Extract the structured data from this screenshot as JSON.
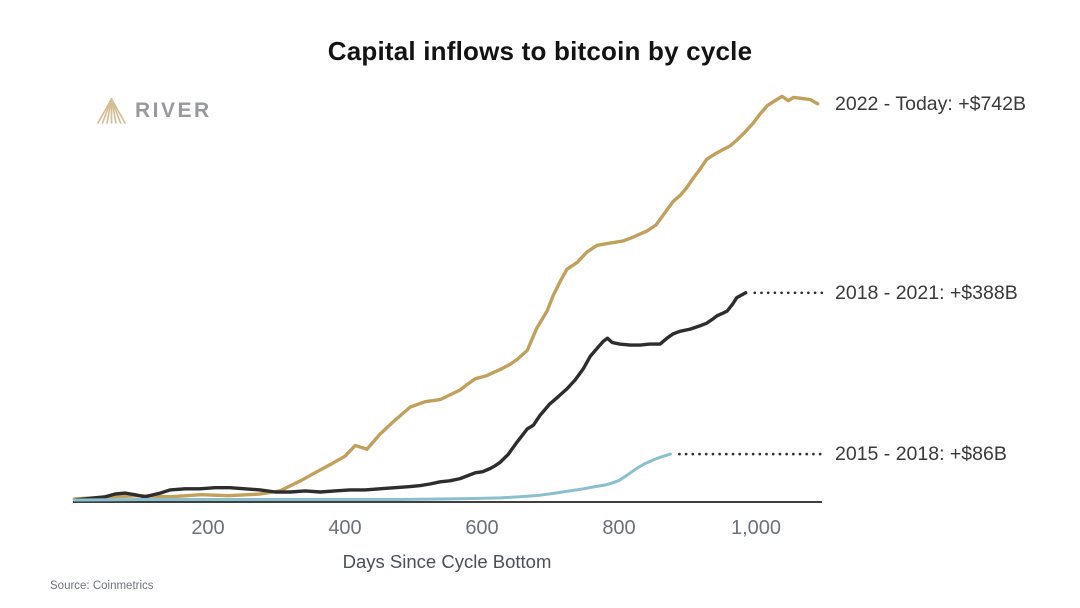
{
  "page": {
    "title": "Capital inflows to bitcoin by cycle"
  },
  "logo": {
    "icon": "river-mountain-icon",
    "text": "RIVER",
    "icon_color": "#D3BE95",
    "text_color": "#97999C"
  },
  "source": {
    "text": "Source: Coinmetrics"
  },
  "colors": {
    "axis": "#3F3F3F",
    "tick_label": "#6C7078",
    "annotation_text": "#3A3A3A",
    "leader_dots": "#2E2E2E"
  },
  "chart_data": {
    "type": "line",
    "title": "Capital inflows to bitcoin by cycle",
    "xlabel": "Days Since Cycle Bottom",
    "ylabel": "",
    "xlim": [
      0,
      1100
    ],
    "ylim_billions": [
      0,
      780
    ],
    "grid": false,
    "y_axis_shown": false,
    "legend_position": "right-end-annotations",
    "x_ticks": [
      {
        "value": 200,
        "label": "200"
      },
      {
        "value": 400,
        "label": "400"
      },
      {
        "value": 600,
        "label": "600"
      },
      {
        "value": 800,
        "label": "800"
      },
      {
        "value": 1000,
        "label": "1,000"
      }
    ],
    "series": [
      {
        "name": "2022 - Today",
        "annotation": "2022 - Today: +$742B",
        "color": "#C1A05C",
        "final_value_billions": 742,
        "leader_dots": false,
        "points": [
          [
            5,
            2
          ],
          [
            30,
            4
          ],
          [
            60,
            6
          ],
          [
            100,
            8
          ],
          [
            145,
            6
          ],
          [
            190,
            10
          ],
          [
            230,
            8
          ],
          [
            275,
            11
          ],
          [
            305,
            17
          ],
          [
            335,
            36
          ],
          [
            356,
            51
          ],
          [
            378,
            66
          ],
          [
            400,
            82
          ],
          [
            415,
            102
          ],
          [
            432,
            95
          ],
          [
            451,
            123
          ],
          [
            470,
            146
          ],
          [
            495,
            174
          ],
          [
            517,
            184
          ],
          [
            539,
            188
          ],
          [
            568,
            206
          ],
          [
            578,
            216
          ],
          [
            590,
            227
          ],
          [
            607,
            233
          ],
          [
            626,
            244
          ],
          [
            641,
            254
          ],
          [
            651,
            263
          ],
          [
            666,
            280
          ],
          [
            680,
            322
          ],
          [
            695,
            354
          ],
          [
            704,
            383
          ],
          [
            714,
            409
          ],
          [
            724,
            432
          ],
          [
            739,
            445
          ],
          [
            753,
            464
          ],
          [
            768,
            477
          ],
          [
            787,
            481
          ],
          [
            806,
            485
          ],
          [
            820,
            492
          ],
          [
            841,
            504
          ],
          [
            854,
            515
          ],
          [
            867,
            538
          ],
          [
            879,
            559
          ],
          [
            889,
            570
          ],
          [
            899,
            585
          ],
          [
            908,
            602
          ],
          [
            918,
            619
          ],
          [
            928,
            638
          ],
          [
            940,
            648
          ],
          [
            950,
            655
          ],
          [
            962,
            663
          ],
          [
            972,
            674
          ],
          [
            984,
            689
          ],
          [
            996,
            706
          ],
          [
            1006,
            723
          ],
          [
            1017,
            739
          ],
          [
            1028,
            748
          ],
          [
            1038,
            756
          ],
          [
            1047,
            748
          ],
          [
            1055,
            754
          ],
          [
            1067,
            752
          ],
          [
            1079,
            750
          ],
          [
            1090,
            742
          ]
        ]
      },
      {
        "name": "2018 - 2021",
        "annotation": "2018 - 2021: +$388B",
        "color": "#2D2D2D",
        "final_value_billions": 388,
        "leader_dots": true,
        "points": [
          [
            6,
            0
          ],
          [
            50,
            6
          ],
          [
            64,
            11
          ],
          [
            79,
            13
          ],
          [
            93,
            10
          ],
          [
            108,
            6
          ],
          [
            130,
            13
          ],
          [
            145,
            19
          ],
          [
            166,
            21
          ],
          [
            188,
            21
          ],
          [
            210,
            23
          ],
          [
            232,
            23
          ],
          [
            254,
            21
          ],
          [
            276,
            19
          ],
          [
            298,
            15
          ],
          [
            320,
            15
          ],
          [
            342,
            17
          ],
          [
            364,
            15
          ],
          [
            385,
            17
          ],
          [
            407,
            19
          ],
          [
            429,
            19
          ],
          [
            451,
            21
          ],
          [
            473,
            23
          ],
          [
            495,
            25
          ],
          [
            510,
            27
          ],
          [
            524,
            30
          ],
          [
            539,
            34
          ],
          [
            553,
            36
          ],
          [
            568,
            40
          ],
          [
            578,
            45
          ],
          [
            590,
            51
          ],
          [
            601,
            53
          ],
          [
            612,
            59
          ],
          [
            619,
            64
          ],
          [
            626,
            70
          ],
          [
            638,
            85
          ],
          [
            651,
            108
          ],
          [
            660,
            123
          ],
          [
            666,
            133
          ],
          [
            675,
            140
          ],
          [
            685,
            159
          ],
          [
            699,
            180
          ],
          [
            711,
            193
          ],
          [
            724,
            208
          ],
          [
            736,
            225
          ],
          [
            748,
            246
          ],
          [
            758,
            269
          ],
          [
            768,
            284
          ],
          [
            777,
            297
          ],
          [
            783,
            303
          ],
          [
            790,
            295
          ],
          [
            801,
            292
          ],
          [
            816,
            290
          ],
          [
            831,
            290
          ],
          [
            845,
            292
          ],
          [
            860,
            292
          ],
          [
            870,
            303
          ],
          [
            879,
            311
          ],
          [
            889,
            316
          ],
          [
            904,
            320
          ],
          [
            918,
            326
          ],
          [
            928,
            331
          ],
          [
            937,
            339
          ],
          [
            943,
            345
          ],
          [
            952,
            350
          ],
          [
            958,
            354
          ],
          [
            966,
            367
          ],
          [
            972,
            379
          ],
          [
            985,
            388
          ]
        ]
      },
      {
        "name": "2015 - 2018",
        "annotation": "2015 - 2018: +$86B",
        "color": "#8CBFCE",
        "final_value_billions": 86,
        "leader_dots": true,
        "points": [
          [
            5,
            0
          ],
          [
            100,
            1
          ],
          [
            200,
            1
          ],
          [
            300,
            1
          ],
          [
            400,
            1
          ],
          [
            480,
            1
          ],
          [
            553,
            2
          ],
          [
            597,
            3
          ],
          [
            626,
            4
          ],
          [
            655,
            6
          ],
          [
            685,
            9
          ],
          [
            707,
            13
          ],
          [
            728,
            17
          ],
          [
            748,
            21
          ],
          [
            765,
            25
          ],
          [
            780,
            28
          ],
          [
            790,
            32
          ],
          [
            799,
            36
          ],
          [
            809,
            44
          ],
          [
            819,
            53
          ],
          [
            828,
            61
          ],
          [
            838,
            68
          ],
          [
            848,
            74
          ],
          [
            860,
            80
          ],
          [
            875,
            86
          ]
        ]
      }
    ]
  }
}
